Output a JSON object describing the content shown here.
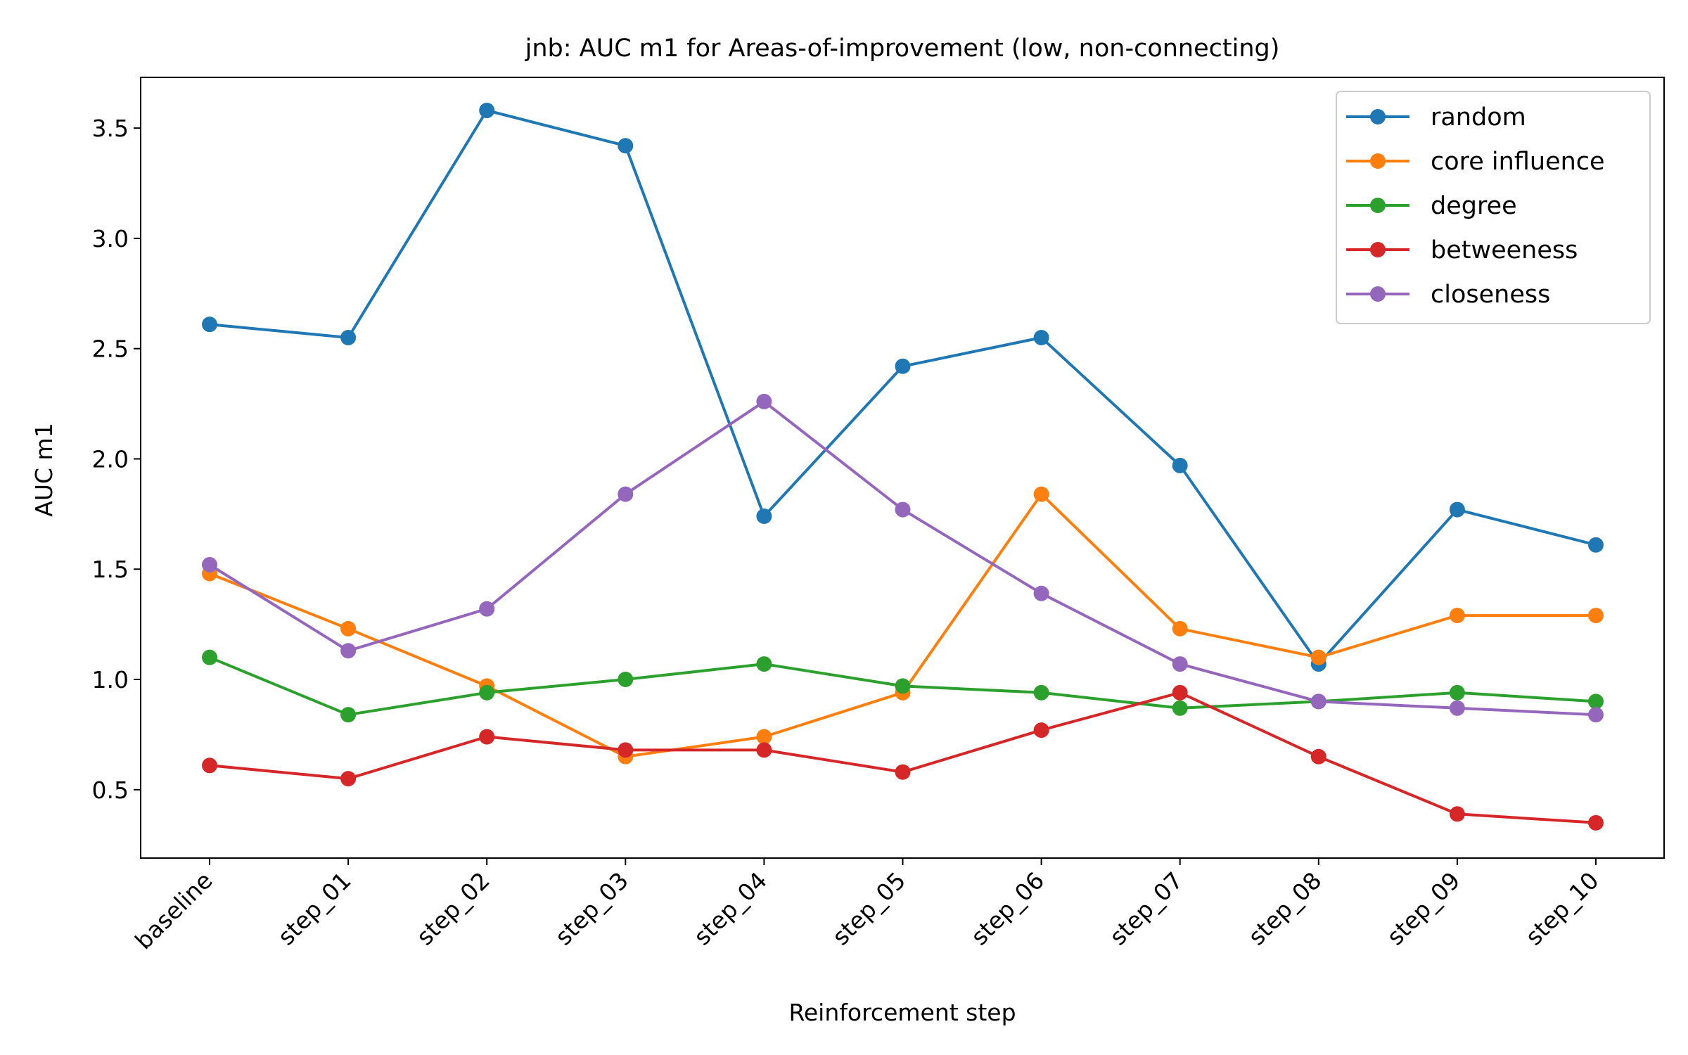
{
  "chart_data": {
    "type": "line",
    "title": "jnb: AUC m1 for Areas-of-improvement (low, non-connecting)",
    "xlabel": "Reinforcement step",
    "ylabel": "AUC m1",
    "categories": [
      "baseline",
      "step_01",
      "step_02",
      "step_03",
      "step_04",
      "step_05",
      "step_06",
      "step_07",
      "step_08",
      "step_09",
      "step_10"
    ],
    "ylim": [
      0.19,
      3.73
    ],
    "yticks": [
      "0.5",
      "1.0",
      "1.5",
      "2.0",
      "2.5",
      "3.0",
      "3.5"
    ],
    "grid": false,
    "legend_position": "top-right",
    "series": [
      {
        "name": "random",
        "color": "#1f77b4",
        "values": [
          2.61,
          2.55,
          3.58,
          3.42,
          1.74,
          2.42,
          2.55,
          1.97,
          1.07,
          1.77,
          1.61
        ]
      },
      {
        "name": "core influence",
        "color": "#ff7f0e",
        "values": [
          1.48,
          1.23,
          0.97,
          0.65,
          0.74,
          0.94,
          1.84,
          1.23,
          1.1,
          1.29,
          1.29
        ]
      },
      {
        "name": "degree",
        "color": "#2ca02c",
        "values": [
          1.1,
          0.84,
          0.94,
          1.0,
          1.07,
          0.97,
          0.94,
          0.87,
          0.9,
          0.94,
          0.9
        ]
      },
      {
        "name": "betweeness",
        "color": "#d62728",
        "values": [
          0.61,
          0.55,
          0.74,
          0.68,
          0.68,
          0.58,
          0.77,
          0.94,
          0.65,
          0.39,
          0.35
        ]
      },
      {
        "name": "closeness",
        "color": "#9467bd",
        "values": [
          1.52,
          1.13,
          1.32,
          1.84,
          2.26,
          1.77,
          1.39,
          1.07,
          0.9,
          0.87,
          0.84
        ]
      }
    ]
  }
}
